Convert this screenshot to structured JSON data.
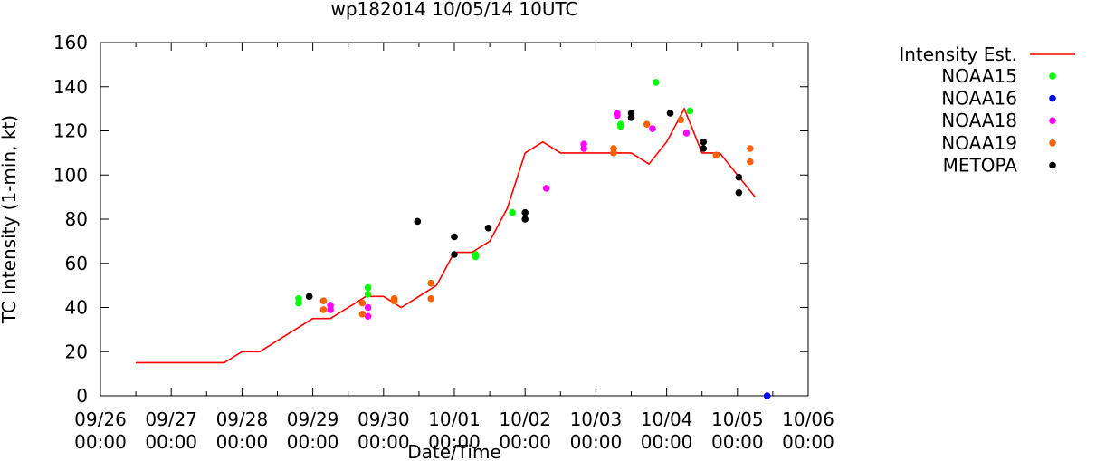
{
  "chart_data": {
    "type": "scatter",
    "title": "wp182014 10/05/14 10UTC",
    "xlabel": "Date/Time",
    "ylabel": "TC Intensity (1-min, kt)",
    "xlim": [
      0,
      10
    ],
    "ylim": [
      0,
      160
    ],
    "yticks": [
      0,
      20,
      40,
      60,
      80,
      100,
      120,
      140,
      160
    ],
    "xtick_labels": [
      {
        "date": "09/26",
        "time": "00:00"
      },
      {
        "date": "09/27",
        "time": "00:00"
      },
      {
        "date": "09/28",
        "time": "00:00"
      },
      {
        "date": "09/29",
        "time": "00:00"
      },
      {
        "date": "09/30",
        "time": "00:00"
      },
      {
        "date": "10/01",
        "time": "00:00"
      },
      {
        "date": "10/02",
        "time": "00:00"
      },
      {
        "date": "10/03",
        "time": "00:00"
      },
      {
        "date": "10/04",
        "time": "00:00"
      },
      {
        "date": "10/05",
        "time": "00:00"
      },
      {
        "date": "10/06",
        "time": "00:00"
      }
    ],
    "x_units": "days since 09/26 00:00",
    "legend_position": "right",
    "intensity_line": {
      "name": "Intensity Est.",
      "color": "#ff0000",
      "x": [
        0.5,
        1.75,
        2.0,
        2.25,
        2.5,
        3.0,
        3.25,
        3.75,
        4.0,
        4.25,
        4.75,
        5.0,
        5.25,
        5.5,
        5.75,
        6.0,
        6.25,
        6.5,
        7.0,
        7.5,
        7.75,
        8.0,
        8.25,
        8.5,
        8.75,
        9.0,
        9.25
      ],
      "y": [
        15,
        15,
        20,
        20,
        25,
        35,
        35,
        45,
        45,
        40,
        50,
        65,
        65,
        70,
        85,
        110,
        115,
        110,
        110,
        110,
        105,
        115,
        130,
        110,
        110,
        100,
        90
      ]
    },
    "series": [
      {
        "name": "NOAA15",
        "color": "#00ff00",
        "points": [
          [
            2.8,
            44
          ],
          [
            2.8,
            42
          ],
          [
            3.78,
            49
          ],
          [
            3.78,
            46
          ],
          [
            5.3,
            64
          ],
          [
            5.3,
            63
          ],
          [
            5.82,
            83
          ],
          [
            7.35,
            122
          ],
          [
            7.35,
            123
          ],
          [
            7.85,
            142
          ],
          [
            8.33,
            129
          ]
        ]
      },
      {
        "name": "NOAA16",
        "color": "#0000ff",
        "points": [
          [
            9.42,
            0
          ]
        ]
      },
      {
        "name": "NOAA18",
        "color": "#ff00ff",
        "points": [
          [
            3.25,
            41
          ],
          [
            3.25,
            39
          ],
          [
            3.78,
            40
          ],
          [
            3.78,
            36
          ],
          [
            6.3,
            94
          ],
          [
            6.83,
            114
          ],
          [
            6.83,
            112
          ],
          [
            7.3,
            128
          ],
          [
            7.3,
            127
          ],
          [
            7.8,
            121
          ],
          [
            8.28,
            119
          ]
        ]
      },
      {
        "name": "NOAA19",
        "color": "#ff6000",
        "points": [
          [
            3.15,
            43
          ],
          [
            3.15,
            39
          ],
          [
            3.7,
            42
          ],
          [
            3.7,
            37
          ],
          [
            4.15,
            44
          ],
          [
            4.15,
            43
          ],
          [
            4.67,
            51
          ],
          [
            4.67,
            44
          ],
          [
            7.25,
            112
          ],
          [
            7.25,
            110
          ],
          [
            7.72,
            123
          ],
          [
            8.2,
            125
          ],
          [
            8.7,
            109
          ],
          [
            9.18,
            112
          ],
          [
            9.18,
            106
          ]
        ]
      },
      {
        "name": "METOPA",
        "color": "#000000",
        "points": [
          [
            2.95,
            45
          ],
          [
            4.48,
            79
          ],
          [
            5.0,
            72
          ],
          [
            5.0,
            64
          ],
          [
            5.48,
            76
          ],
          [
            6.0,
            83
          ],
          [
            6.0,
            80
          ],
          [
            7.5,
            128
          ],
          [
            7.5,
            126
          ],
          [
            8.05,
            128
          ],
          [
            8.52,
            115
          ],
          [
            8.52,
            112
          ],
          [
            9.02,
            99
          ],
          [
            9.02,
            92
          ]
        ]
      }
    ]
  }
}
